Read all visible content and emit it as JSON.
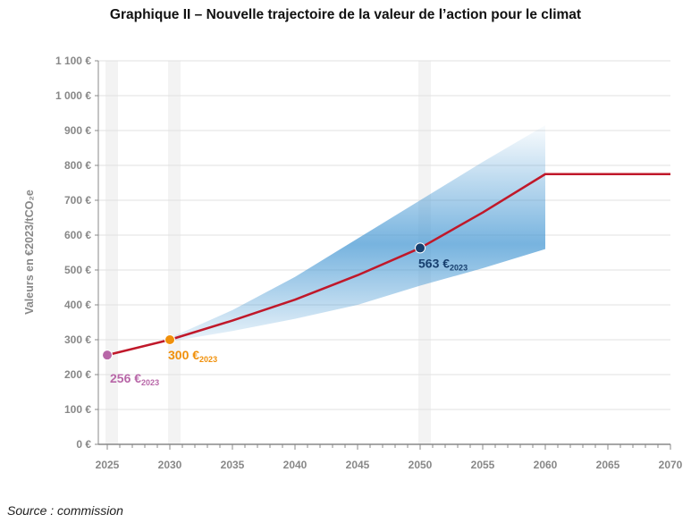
{
  "chart_data": {
    "type": "line",
    "title": "Graphique II – Nouvelle trajectoire de la valeur de l’action pour le climat",
    "ylabel": "Valeurs en €2023/tCO₂e",
    "xlabel": "",
    "xlim": [
      2025,
      2070
    ],
    "ylim": [
      0,
      1100
    ],
    "x_ticks": [
      2025,
      2030,
      2035,
      2040,
      2045,
      2050,
      2055,
      2060,
      2065,
      2070
    ],
    "y_ticks": [
      0,
      100,
      200,
      300,
      400,
      500,
      600,
      700,
      800,
      900,
      1000,
      1100
    ],
    "y_tick_labels": [
      "0 €",
      "100 €",
      "200 €",
      "300 €",
      "400 €",
      "500 €",
      "600 €",
      "700 €",
      "800 €",
      "900 €",
      "1 000 €",
      "1 100 €"
    ],
    "grid": true,
    "highlighted_years": [
      2025,
      2030,
      2050
    ],
    "series": [
      {
        "x": [
          2025,
          2030,
          2035,
          2040,
          2045,
          2050,
          2055,
          2060,
          2065,
          2070
        ],
        "values": [
          256,
          300,
          355,
          415,
          485,
          563,
          665,
          775,
          775,
          775
        ],
        "color": "#c0182a"
      }
    ],
    "uncertainty_band": {
      "x": [
        2030,
        2035,
        2040,
        2045,
        2050,
        2055,
        2060
      ],
      "lower": [
        295,
        325,
        360,
        400,
        455,
        505,
        560
      ],
      "upper": [
        305,
        385,
        480,
        590,
        700,
        810,
        915
      ],
      "color": "#4a9ad4"
    },
    "annotations": [
      {
        "x": 2025,
        "y": 256,
        "label": "256 €",
        "sub": "2023",
        "color": "#b867a8"
      },
      {
        "x": 2030,
        "y": 300,
        "label": "300 €",
        "sub": "2023",
        "color": "#f0900a"
      },
      {
        "x": 2050,
        "y": 563,
        "label": "563 €",
        "sub": "2023",
        "color": "#173f6e"
      }
    ]
  },
  "source": "Source : commission"
}
